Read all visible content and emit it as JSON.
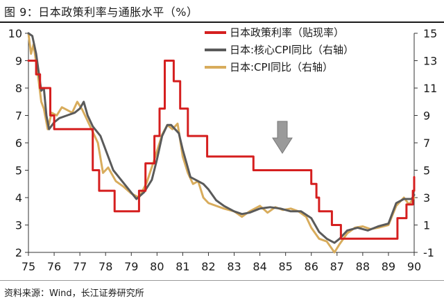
{
  "figure": {
    "title": "图 9：日本政策利率与通胀水平（%）",
    "source": "资料来源：Wind，长江证券研究所"
  },
  "colors": {
    "policy_rate": "#d51f1f",
    "core_cpi": "#5a5a5a",
    "cpi": "#d8ac5c",
    "axis": "#333333",
    "arrow": "#9a9a9a"
  },
  "chart_data": {
    "type": "line",
    "x_ticks": [
      "75",
      "76",
      "77",
      "78",
      "79",
      "80",
      "81",
      "82",
      "83",
      "84",
      "85",
      "86",
      "87",
      "88",
      "89",
      "90"
    ],
    "xlim": [
      1975,
      1990
    ],
    "ylim_left": [
      2,
      10
    ],
    "y_ticks_left": [
      "2",
      "3",
      "4",
      "5",
      "6",
      "7",
      "8",
      "9",
      "10"
    ],
    "ylim_right": [
      -1,
      15
    ],
    "y_ticks_right": [
      "-1",
      "1",
      "3",
      "5",
      "7",
      "9",
      "11",
      "13",
      "15"
    ],
    "legend_position": "top-right",
    "annotation": "down-arrow",
    "series": [
      {
        "name": "日本政策利率（贴现率）",
        "axis": "left",
        "color_key": "policy_rate",
        "step": true,
        "points": [
          [
            1975.0,
            9.0
          ],
          [
            1975.3,
            8.5
          ],
          [
            1975.45,
            8.0
          ],
          [
            1975.85,
            7.0
          ],
          [
            1976.0,
            6.5
          ],
          [
            1977.2,
            6.5
          ],
          [
            1977.5,
            5.0
          ],
          [
            1977.75,
            4.25
          ],
          [
            1978.35,
            3.5
          ],
          [
            1979.3,
            4.25
          ],
          [
            1979.55,
            5.25
          ],
          [
            1979.9,
            6.25
          ],
          [
            1980.1,
            7.25
          ],
          [
            1980.3,
            9.0
          ],
          [
            1980.65,
            8.25
          ],
          [
            1980.9,
            7.25
          ],
          [
            1981.2,
            6.25
          ],
          [
            1981.95,
            5.5
          ],
          [
            1983.75,
            5.0
          ],
          [
            1986.0,
            4.5
          ],
          [
            1986.2,
            4.0
          ],
          [
            1986.3,
            3.5
          ],
          [
            1986.8,
            3.0
          ],
          [
            1987.15,
            2.5
          ],
          [
            1989.35,
            3.25
          ],
          [
            1989.7,
            3.75
          ],
          [
            1989.95,
            4.25
          ],
          [
            1990.0,
            4.75
          ]
        ]
      },
      {
        "name": "日本:核心CPI同比（右轴）",
        "axis": "right",
        "color_key": "core_cpi",
        "step": false,
        "points": [
          [
            1975.0,
            15.0
          ],
          [
            1975.15,
            14.8
          ],
          [
            1975.3,
            13.5
          ],
          [
            1975.5,
            10.8
          ],
          [
            1975.6,
            11.0
          ],
          [
            1975.7,
            9.0
          ],
          [
            1975.8,
            8.0
          ],
          [
            1976.0,
            8.5
          ],
          [
            1976.2,
            8.8
          ],
          [
            1976.5,
            9.0
          ],
          [
            1976.8,
            9.2
          ],
          [
            1977.0,
            9.5
          ],
          [
            1977.15,
            10.0
          ],
          [
            1977.3,
            9.0
          ],
          [
            1977.5,
            8.2
          ],
          [
            1977.8,
            7.5
          ],
          [
            1978.0,
            6.5
          ],
          [
            1978.3,
            5.0
          ],
          [
            1978.6,
            4.3
          ],
          [
            1978.9,
            3.6
          ],
          [
            1979.2,
            2.9
          ],
          [
            1979.5,
            3.4
          ],
          [
            1979.8,
            4.3
          ],
          [
            1980.0,
            5.8
          ],
          [
            1980.2,
            7.5
          ],
          [
            1980.4,
            8.3
          ],
          [
            1980.55,
            8.3
          ],
          [
            1980.7,
            8.0
          ],
          [
            1980.85,
            7.7
          ],
          [
            1981.0,
            6.5
          ],
          [
            1981.15,
            5.5
          ],
          [
            1981.3,
            4.5
          ],
          [
            1981.5,
            4.3
          ],
          [
            1981.8,
            4.0
          ],
          [
            1982.0,
            3.6
          ],
          [
            1982.3,
            2.8
          ],
          [
            1982.6,
            2.4
          ],
          [
            1983.0,
            2.0
          ],
          [
            1983.3,
            1.8
          ],
          [
            1983.6,
            1.9
          ],
          [
            1984.0,
            2.2
          ],
          [
            1984.4,
            2.3
          ],
          [
            1984.8,
            2.2
          ],
          [
            1985.2,
            2.0
          ],
          [
            1985.6,
            2.0
          ],
          [
            1986.0,
            1.5
          ],
          [
            1986.3,
            0.5
          ],
          [
            1986.6,
            0.0
          ],
          [
            1986.9,
            -0.3
          ],
          [
            1987.1,
            0.0
          ],
          [
            1987.4,
            0.6
          ],
          [
            1987.8,
            0.8
          ],
          [
            1988.2,
            0.6
          ],
          [
            1988.6,
            0.9
          ],
          [
            1989.0,
            1.1
          ],
          [
            1989.3,
            2.6
          ],
          [
            1989.6,
            2.9
          ],
          [
            1989.9,
            2.9
          ],
          [
            1990.0,
            3.2
          ]
        ]
      },
      {
        "name": "日本:CPI同比（右轴）",
        "axis": "right",
        "color_key": "cpi",
        "step": false,
        "points": [
          [
            1975.0,
            15.0
          ],
          [
            1975.1,
            13.5
          ],
          [
            1975.2,
            14.2
          ],
          [
            1975.4,
            11.5
          ],
          [
            1975.5,
            10.0
          ],
          [
            1975.6,
            9.5
          ],
          [
            1975.75,
            8.0
          ],
          [
            1975.9,
            9.2
          ],
          [
            1976.1,
            9.0
          ],
          [
            1976.3,
            9.6
          ],
          [
            1976.5,
            9.4
          ],
          [
            1976.7,
            9.2
          ],
          [
            1976.9,
            10.0
          ],
          [
            1977.1,
            9.4
          ],
          [
            1977.3,
            8.6
          ],
          [
            1977.5,
            7.8
          ],
          [
            1977.7,
            7.0
          ],
          [
            1977.9,
            4.8
          ],
          [
            1978.1,
            5.2
          ],
          [
            1978.4,
            4.2
          ],
          [
            1978.7,
            3.8
          ],
          [
            1979.0,
            3.3
          ],
          [
            1979.3,
            3.0
          ],
          [
            1979.6,
            4.1
          ],
          [
            1979.9,
            5.8
          ],
          [
            1980.2,
            7.6
          ],
          [
            1980.4,
            8.3
          ],
          [
            1980.6,
            8.0
          ],
          [
            1980.8,
            8.4
          ],
          [
            1981.0,
            6.0
          ],
          [
            1981.2,
            4.8
          ],
          [
            1981.4,
            4.0
          ],
          [
            1981.6,
            4.2
          ],
          [
            1981.8,
            3.0
          ],
          [
            1982.0,
            2.6
          ],
          [
            1982.3,
            2.4
          ],
          [
            1982.6,
            2.2
          ],
          [
            1983.0,
            2.0
          ],
          [
            1983.3,
            1.6
          ],
          [
            1983.6,
            2.0
          ],
          [
            1984.0,
            2.4
          ],
          [
            1984.3,
            1.9
          ],
          [
            1984.6,
            2.3
          ],
          [
            1984.9,
            2.1
          ],
          [
            1985.2,
            2.2
          ],
          [
            1985.5,
            2.0
          ],
          [
            1985.8,
            1.6
          ],
          [
            1986.0,
            0.8
          ],
          [
            1986.3,
            0.0
          ],
          [
            1986.6,
            -0.2
          ],
          [
            1986.9,
            -1.0
          ],
          [
            1987.1,
            -0.4
          ],
          [
            1987.4,
            0.4
          ],
          [
            1987.7,
            0.8
          ],
          [
            1988.0,
            0.9
          ],
          [
            1988.3,
            0.7
          ],
          [
            1988.6,
            0.8
          ],
          [
            1989.0,
            1.0
          ],
          [
            1989.3,
            2.4
          ],
          [
            1989.6,
            3.0
          ],
          [
            1989.8,
            2.5
          ],
          [
            1990.0,
            3.0
          ]
        ]
      }
    ]
  }
}
